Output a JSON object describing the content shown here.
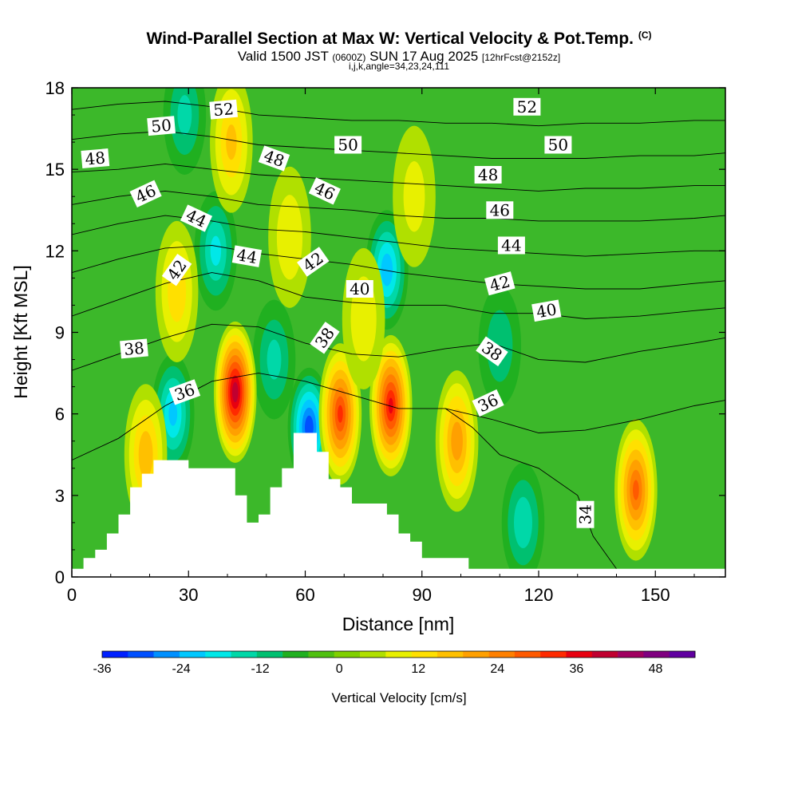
{
  "header": {
    "title": "Wind-Parallel Section at Max W: Vertical Velocity & Pot.Temp.",
    "title_corner": "(C)",
    "valid_prefix": "Valid 1500 JST",
    "valid_utc": "(0600Z)",
    "valid_date": "SUN 17 Aug 2025",
    "forecast": "[12hrFcst@2152z]",
    "indices": "i,j,k,angle=34,23,24,111"
  },
  "chart_data": {
    "type": "heatmap",
    "title": "Wind-Parallel Section at Max W: Vertical Velocity & Pot.Temp.",
    "xlabel": "Distance [nm]",
    "ylabel": "Height [Kft MSL]",
    "xlim": [
      0,
      168
    ],
    "ylim": [
      0,
      18
    ],
    "x_ticks": [
      0,
      30,
      60,
      90,
      120,
      150
    ],
    "y_ticks": [
      0,
      3,
      6,
      9,
      12,
      15,
      18
    ],
    "colorbar": {
      "label": "Vertical Velocity [cm/s]",
      "min": -36,
      "max": 54,
      "step": 4,
      "tick_values": [
        -36,
        -24,
        -12,
        0,
        12,
        24,
        36,
        48
      ],
      "colors": [
        "#0020ff",
        "#0050ff",
        "#0090ff",
        "#00c8ff",
        "#00e8e8",
        "#00d8a8",
        "#00c070",
        "#20b020",
        "#50c010",
        "#80d000",
        "#b0e000",
        "#e8f000",
        "#ffe000",
        "#ffc000",
        "#ffa000",
        "#ff8000",
        "#ff5a00",
        "#ff2a00",
        "#e80010",
        "#c00030",
        "#a00060",
        "#800080",
        "#6000a0"
      ]
    },
    "updrafts": [
      {
        "x": 42,
        "y": 6.8,
        "peak": 44
      },
      {
        "x": 82,
        "y": 6.3,
        "peak": 38
      },
      {
        "x": 69,
        "y": 6.0,
        "peak": 34
      },
      {
        "x": 145,
        "y": 3.2,
        "peak": 30
      },
      {
        "x": 99,
        "y": 5.0,
        "peak": 24
      },
      {
        "x": 19,
        "y": 4.5,
        "peak": 20
      },
      {
        "x": 27,
        "y": 10.5,
        "peak": 16
      },
      {
        "x": 41,
        "y": 16.0,
        "peak": 18
      },
      {
        "x": 56,
        "y": 12.5,
        "peak": 12
      },
      {
        "x": 75,
        "y": 9.5,
        "peak": 12
      },
      {
        "x": 88,
        "y": 14.0,
        "peak": 10
      }
    ],
    "downdrafts": [
      {
        "x": 61,
        "y": 5.5,
        "peak": -32
      },
      {
        "x": 26,
        "y": 6.0,
        "peak": -22
      },
      {
        "x": 81,
        "y": 11.3,
        "peak": -24
      },
      {
        "x": 37,
        "y": 12.0,
        "peak": -18
      },
      {
        "x": 116,
        "y": 2.0,
        "peak": -16
      },
      {
        "x": 29,
        "y": 17.0,
        "peak": -14
      },
      {
        "x": 52,
        "y": 8.0,
        "peak": -14
      },
      {
        "x": 110,
        "y": 8.5,
        "peak": -12
      }
    ],
    "terrain": {
      "x": [
        0,
        3,
        6,
        9,
        12,
        15,
        18,
        21,
        24,
        27,
        30,
        33,
        36,
        39,
        42,
        45,
        48,
        51,
        54,
        57,
        60,
        63,
        66,
        69,
        72,
        75,
        78,
        81,
        84,
        87,
        90,
        93,
        96,
        99,
        102,
        105,
        168
      ],
      "y": [
        0.3,
        0.7,
        1.0,
        1.6,
        2.3,
        3.3,
        3.8,
        4.3,
        4.3,
        4.3,
        4.0,
        4.0,
        4.0,
        4.0,
        3.0,
        2.0,
        2.3,
        3.3,
        4.0,
        5.3,
        5.3,
        4.6,
        3.6,
        3.3,
        2.7,
        2.7,
        2.7,
        2.3,
        1.6,
        1.3,
        0.7,
        0.7,
        0.7,
        0.7,
        0.3,
        0.3,
        0.3
      ]
    },
    "theta_contours": [
      {
        "value": 34,
        "points": [
          [
            140,
            0.3
          ],
          [
            134,
            1.5
          ],
          [
            130,
            3.0
          ],
          [
            120,
            4.0
          ],
          [
            110,
            4.5
          ],
          [
            103,
            5.5
          ],
          [
            96,
            6.2
          ]
        ]
      },
      {
        "value": 36,
        "points": [
          [
            0,
            4.3
          ],
          [
            12,
            5.1
          ],
          [
            24,
            6.3
          ],
          [
            36,
            7.2
          ],
          [
            48,
            7.5
          ],
          [
            60,
            7.2
          ],
          [
            72,
            6.7
          ],
          [
            84,
            6.2
          ],
          [
            96,
            6.2
          ],
          [
            108,
            5.8
          ],
          [
            120,
            5.3
          ],
          [
            132,
            5.4
          ],
          [
            146,
            5.8
          ],
          [
            160,
            6.3
          ],
          [
            168,
            6.5
          ]
        ]
      },
      {
        "value": 38,
        "points": [
          [
            0,
            7.6
          ],
          [
            12,
            8.2
          ],
          [
            24,
            8.8
          ],
          [
            36,
            9.3
          ],
          [
            48,
            9.2
          ],
          [
            60,
            8.6
          ],
          [
            72,
            8.2
          ],
          [
            84,
            8.1
          ],
          [
            96,
            8.4
          ],
          [
            108,
            8.6
          ],
          [
            120,
            8.0
          ],
          [
            132,
            7.9
          ],
          [
            146,
            8.3
          ],
          [
            160,
            8.6
          ],
          [
            168,
            8.8
          ]
        ]
      },
      {
        "value": 40,
        "points": [
          [
            0,
            9.6
          ],
          [
            12,
            10.2
          ],
          [
            24,
            10.8
          ],
          [
            36,
            11.2
          ],
          [
            48,
            10.9
          ],
          [
            60,
            10.3
          ],
          [
            72,
            10.1
          ],
          [
            84,
            10.0
          ],
          [
            96,
            10.0
          ],
          [
            108,
            9.7
          ],
          [
            120,
            9.7
          ],
          [
            132,
            9.5
          ],
          [
            146,
            9.6
          ],
          [
            160,
            9.8
          ],
          [
            168,
            9.9
          ]
        ]
      },
      {
        "value": 42,
        "points": [
          [
            0,
            11.2
          ],
          [
            12,
            11.7
          ],
          [
            24,
            12.1
          ],
          [
            36,
            12.2
          ],
          [
            48,
            11.9
          ],
          [
            60,
            11.7
          ],
          [
            72,
            11.5
          ],
          [
            84,
            11.2
          ],
          [
            96,
            11.0
          ],
          [
            108,
            10.8
          ],
          [
            120,
            10.7
          ],
          [
            132,
            10.6
          ],
          [
            146,
            10.6
          ],
          [
            160,
            10.8
          ],
          [
            168,
            10.9
          ]
        ]
      },
      {
        "value": 44,
        "points": [
          [
            0,
            12.6
          ],
          [
            12,
            13.0
          ],
          [
            24,
            13.3
          ],
          [
            36,
            13.1
          ],
          [
            48,
            12.8
          ],
          [
            60,
            12.7
          ],
          [
            72,
            12.5
          ],
          [
            84,
            12.3
          ],
          [
            96,
            12.1
          ],
          [
            108,
            12.0
          ],
          [
            120,
            11.9
          ],
          [
            132,
            11.8
          ],
          [
            146,
            11.9
          ],
          [
            160,
            12.0
          ],
          [
            168,
            12.0
          ]
        ]
      },
      {
        "value": 46,
        "points": [
          [
            0,
            13.7
          ],
          [
            12,
            14.0
          ],
          [
            24,
            14.2
          ],
          [
            36,
            14.0
          ],
          [
            48,
            13.7
          ],
          [
            60,
            13.6
          ],
          [
            72,
            13.5
          ],
          [
            84,
            13.3
          ],
          [
            96,
            13.2
          ],
          [
            108,
            13.2
          ],
          [
            120,
            13.1
          ],
          [
            132,
            13.1
          ],
          [
            146,
            13.1
          ],
          [
            160,
            13.2
          ],
          [
            168,
            13.3
          ]
        ]
      },
      {
        "value": 48,
        "points": [
          [
            0,
            14.9
          ],
          [
            12,
            15.0
          ],
          [
            24,
            15.2
          ],
          [
            36,
            15.0
          ],
          [
            48,
            14.8
          ],
          [
            60,
            14.7
          ],
          [
            72,
            14.6
          ],
          [
            84,
            14.5
          ],
          [
            96,
            14.4
          ],
          [
            108,
            14.3
          ],
          [
            120,
            14.2
          ],
          [
            132,
            14.3
          ],
          [
            146,
            14.3
          ],
          [
            160,
            14.4
          ],
          [
            168,
            14.4
          ]
        ]
      },
      {
        "value": 50,
        "points": [
          [
            0,
            16.1
          ],
          [
            12,
            16.3
          ],
          [
            24,
            16.4
          ],
          [
            36,
            16.2
          ],
          [
            48,
            15.9
          ],
          [
            60,
            15.8
          ],
          [
            72,
            15.7
          ],
          [
            84,
            15.6
          ],
          [
            96,
            15.5
          ],
          [
            108,
            15.4
          ],
          [
            120,
            15.4
          ],
          [
            132,
            15.4
          ],
          [
            146,
            15.5
          ],
          [
            160,
            15.5
          ],
          [
            168,
            15.6
          ]
        ]
      },
      {
        "value": 52,
        "points": [
          [
            0,
            17.2
          ],
          [
            12,
            17.4
          ],
          [
            24,
            17.5
          ],
          [
            36,
            17.3
          ],
          [
            48,
            17.0
          ],
          [
            60,
            16.9
          ],
          [
            72,
            16.8
          ],
          [
            84,
            16.8
          ],
          [
            96,
            16.7
          ],
          [
            108,
            16.7
          ],
          [
            120,
            16.6
          ],
          [
            132,
            16.7
          ],
          [
            146,
            16.7
          ],
          [
            160,
            16.8
          ],
          [
            168,
            16.8
          ]
        ]
      }
    ],
    "contour_labels": [
      {
        "text": "52",
        "x": 39,
        "y": 17.2,
        "angle": -5
      },
      {
        "text": "52",
        "x": 117,
        "y": 17.3,
        "angle": 0
      },
      {
        "text": "50",
        "x": 23,
        "y": 16.6,
        "angle": -5
      },
      {
        "text": "50",
        "x": 71,
        "y": 15.9,
        "angle": 0
      },
      {
        "text": "50",
        "x": 125,
        "y": 15.9,
        "angle": 0
      },
      {
        "text": "48",
        "x": 6,
        "y": 15.4,
        "angle": -5
      },
      {
        "text": "48",
        "x": 52,
        "y": 15.4,
        "angle": 20
      },
      {
        "text": "48",
        "x": 107,
        "y": 14.8,
        "angle": 0
      },
      {
        "text": "46",
        "x": 19,
        "y": 14.1,
        "angle": -25
      },
      {
        "text": "46",
        "x": 65,
        "y": 14.2,
        "angle": 25
      },
      {
        "text": "46",
        "x": 110,
        "y": 13.5,
        "angle": 0
      },
      {
        "text": "44",
        "x": 32,
        "y": 13.2,
        "angle": 25
      },
      {
        "text": "44",
        "x": 45,
        "y": 11.8,
        "angle": 10
      },
      {
        "text": "44",
        "x": 113,
        "y": 12.2,
        "angle": 0
      },
      {
        "text": "42",
        "x": 27,
        "y": 11.3,
        "angle": -55
      },
      {
        "text": "42",
        "x": 62,
        "y": 11.6,
        "angle": -35
      },
      {
        "text": "42",
        "x": 110,
        "y": 10.8,
        "angle": -15
      },
      {
        "text": "40",
        "x": 74,
        "y": 10.6,
        "angle": 0
      },
      {
        "text": "40",
        "x": 122,
        "y": 9.8,
        "angle": -10
      },
      {
        "text": "38",
        "x": 16,
        "y": 8.4,
        "angle": -5
      },
      {
        "text": "38",
        "x": 65,
        "y": 8.8,
        "angle": -55
      },
      {
        "text": "38",
        "x": 108,
        "y": 8.3,
        "angle": 35
      },
      {
        "text": "36",
        "x": 29,
        "y": 6.8,
        "angle": -20
      },
      {
        "text": "36",
        "x": 107,
        "y": 6.4,
        "angle": -25
      },
      {
        "text": "34",
        "x": 132,
        "y": 2.3,
        "angle": -90
      }
    ]
  }
}
